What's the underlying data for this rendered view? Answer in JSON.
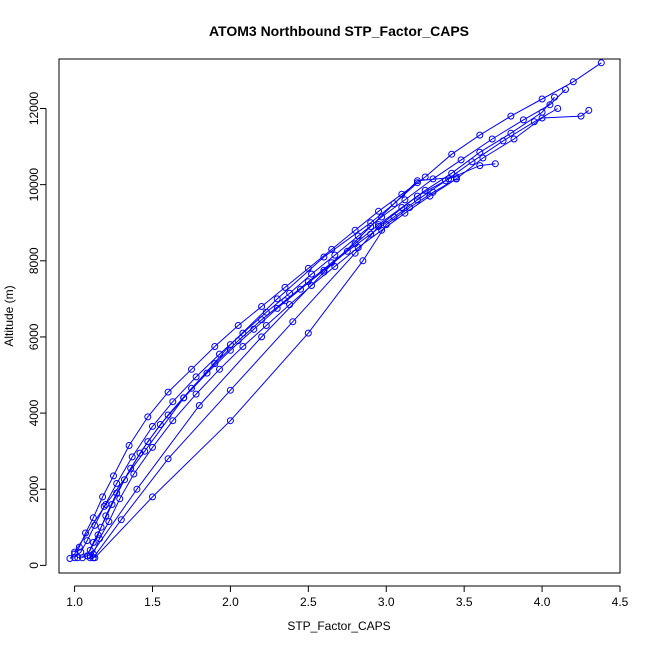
{
  "chart_data": {
    "type": "scatter",
    "title": "ATOM3 Northbound STP_Factor_CAPS",
    "xlabel": "STP_Factor_CAPS",
    "ylabel": "Altitude (m)",
    "xlim": [
      0.9,
      4.5
    ],
    "ylim": [
      -200,
      13300
    ],
    "x_ticks": [
      1.0,
      1.5,
      2.0,
      2.5,
      3.0,
      3.5,
      4.0,
      4.5
    ],
    "x_tick_labels": [
      "1.0",
      "1.5",
      "2.0",
      "2.5",
      "3.0",
      "3.5",
      "4.0",
      "4.5"
    ],
    "y_ticks": [
      0,
      2000,
      4000,
      6000,
      8000,
      10000,
      12000
    ],
    "y_tick_labels": [
      "0",
      "2000",
      "4000",
      "6000",
      "8000",
      "10000",
      "12000"
    ],
    "grid": false,
    "marker": "open-circle",
    "line_connected": true,
    "color": "#0000ff",
    "series": [
      {
        "points": [
          [
            0.97,
            180
          ],
          [
            1.0,
            300
          ],
          [
            1.03,
            480
          ],
          [
            1.07,
            850
          ],
          [
            1.12,
            1250
          ],
          [
            1.18,
            1800
          ],
          [
            1.25,
            2350
          ],
          [
            1.35,
            3150
          ],
          [
            1.47,
            3900
          ],
          [
            1.6,
            4550
          ],
          [
            1.75,
            5150
          ],
          [
            1.9,
            5750
          ],
          [
            2.05,
            6300
          ],
          [
            2.2,
            6800
          ],
          [
            2.35,
            7300
          ],
          [
            2.5,
            7800
          ],
          [
            2.65,
            8300
          ],
          [
            2.8,
            8800
          ],
          [
            2.95,
            9300
          ],
          [
            3.1,
            9750
          ],
          [
            3.25,
            10200
          ],
          [
            3.42,
            10800
          ],
          [
            3.6,
            11300
          ],
          [
            3.8,
            11800
          ],
          [
            4.0,
            12250
          ],
          [
            4.2,
            12700
          ],
          [
            4.38,
            13200
          ]
        ]
      },
      {
        "points": [
          [
            1.0,
            200
          ],
          [
            1.04,
            350
          ],
          [
            1.08,
            650
          ],
          [
            1.13,
            1050
          ],
          [
            1.19,
            1550
          ],
          [
            1.27,
            2150
          ],
          [
            1.37,
            2850
          ],
          [
            1.5,
            3650
          ],
          [
            1.63,
            4300
          ],
          [
            1.78,
            4950
          ],
          [
            1.93,
            5550
          ],
          [
            2.08,
            6100
          ],
          [
            2.23,
            6650
          ],
          [
            2.38,
            7150
          ],
          [
            2.52,
            7650
          ],
          [
            2.67,
            8150
          ],
          [
            2.82,
            8650
          ],
          [
            2.97,
            9150
          ],
          [
            3.12,
            9600
          ],
          [
            3.3,
            10150
          ],
          [
            3.48,
            10650
          ],
          [
            3.68,
            11200
          ],
          [
            3.88,
            11700
          ],
          [
            4.05,
            12100
          ],
          [
            4.15,
            12500
          ]
        ]
      },
      {
        "points": [
          [
            1.05,
            200
          ],
          [
            1.1,
            400
          ],
          [
            1.15,
            800
          ],
          [
            1.2,
            1300
          ],
          [
            1.27,
            1900
          ],
          [
            1.36,
            2550
          ],
          [
            1.47,
            3250
          ],
          [
            1.6,
            3950
          ],
          [
            1.75,
            4650
          ],
          [
            1.9,
            5300
          ],
          [
            2.05,
            5900
          ],
          [
            2.2,
            6450
          ],
          [
            2.35,
            6950
          ],
          [
            2.5,
            7450
          ],
          [
            2.65,
            7950
          ],
          [
            2.8,
            8450
          ],
          [
            2.95,
            8950
          ],
          [
            3.1,
            9400
          ],
          [
            3.25,
            9850
          ],
          [
            3.42,
            10300
          ],
          [
            3.6,
            10850
          ],
          [
            3.8,
            11350
          ],
          [
            4.0,
            11900
          ],
          [
            4.08,
            12300
          ]
        ]
      },
      {
        "points": [
          [
            1.02,
            200
          ],
          [
            1.08,
            250
          ],
          [
            1.12,
            600
          ],
          [
            1.17,
            1000
          ],
          [
            1.24,
            1600
          ],
          [
            1.32,
            2250
          ],
          [
            1.42,
            2950
          ],
          [
            1.55,
            3700
          ],
          [
            1.7,
            4400
          ],
          [
            1.85,
            5050
          ],
          [
            2.0,
            5650
          ],
          [
            2.15,
            6200
          ],
          [
            2.3,
            6750
          ],
          [
            2.45,
            7250
          ],
          [
            2.6,
            7750
          ],
          [
            2.75,
            8250
          ],
          [
            2.9,
            8700
          ],
          [
            3.05,
            9150
          ],
          [
            3.2,
            9600
          ],
          [
            3.38,
            10100
          ],
          [
            3.55,
            10600
          ],
          [
            3.75,
            11150
          ],
          [
            3.95,
            11650
          ],
          [
            4.1,
            12000
          ]
        ]
      },
      {
        "points": [
          [
            1.1,
            200
          ],
          [
            1.12,
            300
          ],
          [
            1.16,
            700
          ],
          [
            1.22,
            1150
          ],
          [
            1.29,
            1750
          ],
          [
            1.38,
            2400
          ],
          [
            1.5,
            3100
          ],
          [
            1.63,
            3800
          ],
          [
            1.78,
            4500
          ],
          [
            1.93,
            5150
          ],
          [
            2.08,
            5750
          ],
          [
            2.23,
            6300
          ],
          [
            2.38,
            6850
          ],
          [
            2.52,
            7350
          ],
          [
            2.67,
            7850
          ],
          [
            2.82,
            8350
          ],
          [
            2.97,
            8800
          ],
          [
            3.12,
            9250
          ],
          [
            3.28,
            9700
          ],
          [
            3.45,
            10150
          ],
          [
            3.62,
            10700
          ],
          [
            3.82,
            11200
          ],
          [
            4.0,
            11750
          ],
          [
            4.25,
            11800
          ],
          [
            4.3,
            11950
          ]
        ]
      },
      {
        "points": [
          [
            1.12,
            200
          ],
          [
            1.3,
            1200
          ],
          [
            1.6,
            2800
          ],
          [
            2.0,
            4600
          ],
          [
            2.4,
            6400
          ],
          [
            2.8,
            8200
          ],
          [
            2.95,
            8900
          ],
          [
            3.2,
            9700
          ],
          [
            3.4,
            10150
          ],
          [
            3.6,
            10500
          ],
          [
            3.7,
            10550
          ]
        ]
      },
      {
        "points": [
          [
            1.13,
            200
          ],
          [
            1.5,
            1800
          ],
          [
            2.0,
            3800
          ],
          [
            2.5,
            6100
          ],
          [
            2.85,
            8000
          ],
          [
            3.0,
            8950
          ],
          [
            3.15,
            9400
          ],
          [
            3.3,
            9800
          ],
          [
            3.45,
            10150
          ]
        ]
      },
      {
        "points": [
          [
            1.1,
            250
          ],
          [
            1.4,
            2000
          ],
          [
            1.8,
            4200
          ],
          [
            2.2,
            6000
          ],
          [
            2.6,
            7700
          ],
          [
            2.9,
            8900
          ],
          [
            3.2,
            10100
          ],
          [
            3.45,
            10200
          ]
        ]
      },
      {
        "points": [
          [
            1.0,
            350
          ],
          [
            1.2,
            1600
          ],
          [
            1.45,
            3000
          ],
          [
            1.7,
            4400
          ],
          [
            2.0,
            5800
          ],
          [
            2.3,
            7000
          ],
          [
            2.6,
            8100
          ],
          [
            2.9,
            9000
          ],
          [
            3.05,
            9500
          ],
          [
            3.2,
            10050
          ]
        ]
      }
    ]
  }
}
